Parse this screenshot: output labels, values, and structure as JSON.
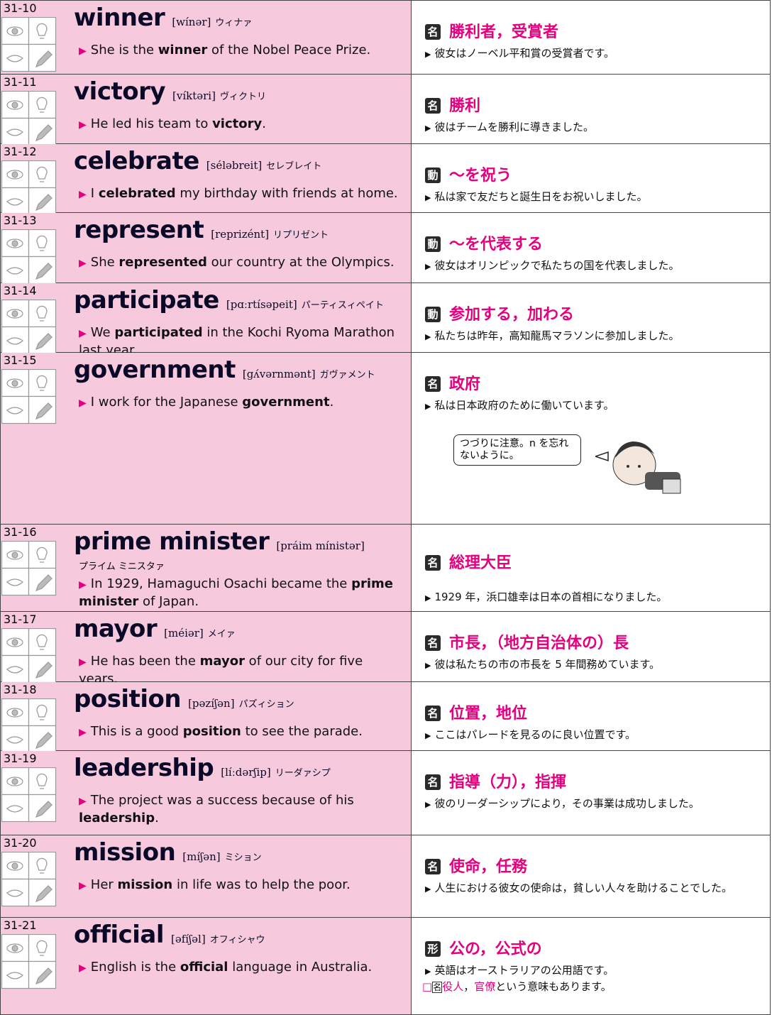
{
  "entries": [
    {
      "id": "31-10",
      "word": "winner",
      "pron": "[wínər]",
      "kana": "ウィナァ",
      "example": [
        "She is the ",
        "winner",
        " of the Nobel Peace Prize."
      ],
      "pos": "名",
      "meaning": "勝利者，受賞者",
      "translation": "彼女はノーベル平和賞の受賞者です。"
    },
    {
      "id": "31-11",
      "word": "victory",
      "pron": "[víktəri]",
      "kana": "ヴィクトリ",
      "example": [
        "He led his team to ",
        "victory",
        "."
      ],
      "pos": "名",
      "meaning": "勝利",
      "translation": "彼はチームを勝利に導きました。"
    },
    {
      "id": "31-12",
      "word": "celebrate",
      "pron": "[séləbreit]",
      "kana": "セレブレイト",
      "example": [
        "I ",
        "celebrated",
        " my birthday with friends at home."
      ],
      "pos": "動",
      "meaning": "～を祝う",
      "translation": "私は家で友だちと誕生日をお祝いしました。"
    },
    {
      "id": "31-13",
      "word": "represent",
      "pron": "[reprizént]",
      "kana": "リプリゼント",
      "example": [
        "She ",
        "represented",
        " our country at the Olympics."
      ],
      "pos": "動",
      "meaning": "～を代表する",
      "translation": "彼女はオリンピックで私たちの国を代表しました。"
    },
    {
      "id": "31-14",
      "word": "participate",
      "pron": "[pɑːrtísəpeit]",
      "kana": "パーティスィペイト",
      "example": [
        "We ",
        "participated",
        " in the Kochi Ryoma Marathon last year."
      ],
      "pos": "動",
      "meaning": "参加する，加わる",
      "translation": "私たちは昨年，高知龍馬マラソンに参加しました。"
    },
    {
      "id": "31-15",
      "word": "government",
      "pron": "[gʌ́vərnmənt]",
      "kana": "ガヴァメント",
      "example": [
        "I work for the Japanese ",
        "government",
        "."
      ],
      "pos": "名",
      "meaning": "政府",
      "translation": "私は日本政府のために働いています。",
      "bubble": "つづりに注意。n を忘れないように。"
    },
    {
      "id": "31-16",
      "word": "prime minister",
      "pron": "[práim mínistər]",
      "kana": "プライム ミニスタァ",
      "example": [
        "In 1929, Hamaguchi Osachi became the ",
        "prime minister",
        " of Japan."
      ],
      "pos": "名",
      "meaning": "総理大臣",
      "translation": "1929 年，浜口雄幸は日本の首相になりました。"
    },
    {
      "id": "31-17",
      "word": "mayor",
      "pron": "[méiər]",
      "kana": "メイァ",
      "example": [
        "He has been the ",
        "mayor",
        " of our city for five years."
      ],
      "pos": "名",
      "meaning": "市長，（地方自治体の）長",
      "translation": "彼は私たちの市の市長を 5 年間務めています。"
    },
    {
      "id": "31-18",
      "word": "position",
      "pron": "[pəzíʃən]",
      "kana": "パズィション",
      "example": [
        "This is a good ",
        "position",
        " to see the parade."
      ],
      "pos": "名",
      "meaning": "位置，地位",
      "translation": "ここはパレードを見るのに良い位置です。"
    },
    {
      "id": "31-19",
      "word": "leadership",
      "pron": "[líːdərʃip]",
      "kana": "リーダァシプ",
      "example": [
        "The project was a success because of his ",
        "leadership",
        "."
      ],
      "pos": "名",
      "meaning": "指導（力），指揮",
      "translation": "彼のリーダーシップにより，その事業は成功しました。"
    },
    {
      "id": "31-20",
      "word": "mission",
      "pron": "[míʃən]",
      "kana": "ミション",
      "example": [
        "Her ",
        "mission",
        " in life was to help the poor."
      ],
      "pos": "名",
      "meaning": "使命，任務",
      "translation": "人生における彼女の使命は，貧しい人々を助けることでした。"
    },
    {
      "id": "31-21",
      "word": "official",
      "pron": "[əfíʃəl]",
      "kana": "オフィシャウ",
      "example": [
        "English is the ",
        "official",
        " language in Australia."
      ],
      "pos": "形",
      "meaning": "公の，公式の",
      "translation": "英語はオーストラリアの公用語です。",
      "note": [
        "□",
        "名",
        "役人",
        "，",
        "官僚",
        "という意味もあります。"
      ]
    }
  ]
}
